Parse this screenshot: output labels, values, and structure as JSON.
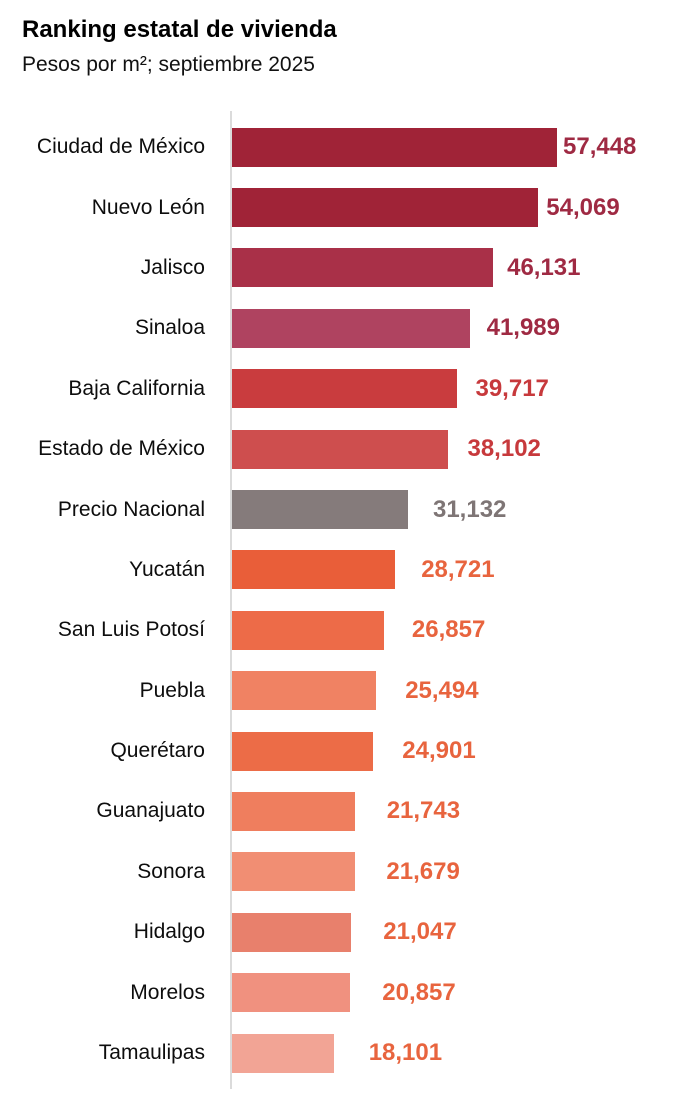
{
  "header": {
    "title": "Ranking estatal de vivienda",
    "subtitle": "Pesos por m²; septiembre 2025"
  },
  "chart_data": {
    "type": "bar",
    "orientation": "horizontal",
    "title": "Ranking estatal de vivienda",
    "subtitle": "Pesos por m²; septiembre 2025",
    "xlabel": "",
    "ylabel": "",
    "xlim": [
      0,
      57448
    ],
    "grid": false,
    "legend": false,
    "axis_line_color": "#DBDBDB",
    "highlight_category": "Precio Nacional",
    "categories": [
      "Ciudad de México",
      "Nuevo León",
      "Jalisco",
      "Sinaloa",
      "Baja California",
      "Estado de México",
      "Precio Nacional",
      "Yucatán",
      "San Luis Potosí",
      "Puebla",
      "Querétaro",
      "Guanajuato",
      "Sonora",
      "Hidalgo",
      "Morelos",
      "Tamaulipas"
    ],
    "values": [
      57448,
      54069,
      46131,
      41989,
      39717,
      38102,
      31132,
      28721,
      26857,
      25494,
      24901,
      21743,
      21679,
      21047,
      20857,
      18101
    ],
    "value_labels": [
      "57,448",
      "54,069",
      "46,131",
      "41,989",
      "39,717",
      "38,102",
      "31,132",
      "28,721",
      "26,857",
      "25,494",
      "24,901",
      "21,743",
      "21,679",
      "21,047",
      "20,857",
      "18,101"
    ],
    "bar_colors": [
      "#A02337",
      "#A02337",
      "#A93048",
      "#AF4360",
      "#C93C3E",
      "#CE4E4E",
      "#857B7B",
      "#E95E39",
      "#ED6B48",
      "#F08263",
      "#EC6C47",
      "#EF7E5E",
      "#F18E73",
      "#E8806C",
      "#F0917F",
      "#F2A495"
    ],
    "value_label_colors": [
      "#9F2A43",
      "#9F2A43",
      "#9F2A43",
      "#9F2A43",
      "#C7393C",
      "#C7393C",
      "#7E7575",
      "#E8643E",
      "#E8643E",
      "#E8643E",
      "#E8643E",
      "#E8643E",
      "#E8643E",
      "#E8643E",
      "#E8643E",
      "#E8643E"
    ]
  }
}
